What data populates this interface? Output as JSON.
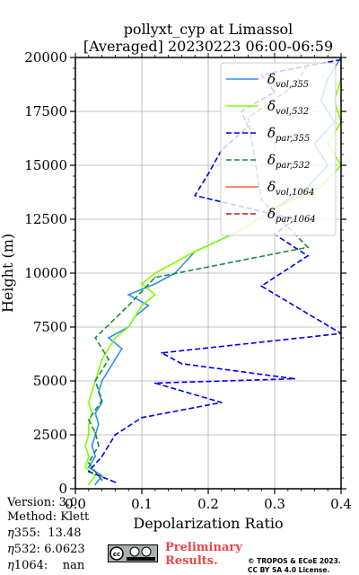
{
  "chart_data": {
    "type": "line",
    "title": [
      "pollyxt_cyp at Limassol",
      "[Averaged] 20230223 06:00-06:59"
    ],
    "xlabel": "Depolarization Ratio",
    "ylabel": "Height (m)",
    "xlim": [
      0.0,
      0.4
    ],
    "ylim": [
      0,
      20000
    ],
    "xticks": [
      0.0,
      0.1,
      0.2,
      0.3,
      0.4
    ],
    "xtick_labels": [
      "0.0",
      "0.1",
      "0.2",
      "0.3",
      "0.4"
    ],
    "yticks": [
      0,
      2500,
      5000,
      7500,
      10000,
      12500,
      15000,
      17500,
      20000
    ],
    "ytick_labels": [
      "0",
      "2500",
      "5000",
      "7500",
      "10000",
      "12500",
      "15000",
      "17500",
      "20000"
    ],
    "grid": true,
    "legend_position": "upper-right",
    "series": [
      {
        "name": "vol,355",
        "label": "δvol,355",
        "base": "δ",
        "sub": "vol,355",
        "color": "#2e8ff0",
        "dash": "solid",
        "width": 1.6,
        "points": [
          [
            0.03,
            200
          ],
          [
            0.04,
            600
          ],
          [
            0.02,
            1000
          ],
          [
            0.03,
            1500
          ],
          [
            0.025,
            2000
          ],
          [
            0.03,
            2500
          ],
          [
            0.035,
            3000
          ],
          [
            0.03,
            3500
          ],
          [
            0.04,
            4000
          ],
          [
            0.035,
            4500
          ],
          [
            0.04,
            5000
          ],
          [
            0.05,
            5500
          ],
          [
            0.06,
            6000
          ],
          [
            0.07,
            6500
          ],
          [
            0.05,
            7000
          ],
          [
            0.08,
            7500
          ],
          [
            0.09,
            8000
          ],
          [
            0.11,
            8500
          ],
          [
            0.08,
            9000
          ],
          [
            0.12,
            9500
          ],
          [
            0.15,
            10000
          ],
          [
            0.18,
            11000
          ],
          [
            0.25,
            12000
          ],
          [
            0.3,
            13000
          ],
          [
            0.35,
            14000
          ],
          [
            0.38,
            15000
          ],
          [
            0.36,
            16000
          ],
          [
            0.39,
            17000
          ],
          [
            0.37,
            18000
          ],
          [
            0.38,
            19000
          ],
          [
            0.4,
            20000
          ]
        ]
      },
      {
        "name": "vol,532",
        "label": "δvol,532",
        "base": "δ",
        "sub": "vol,532",
        "color": "#80ff00",
        "dash": "solid",
        "width": 1.6,
        "points": [
          [
            0.02,
            200
          ],
          [
            0.03,
            600
          ],
          [
            0.015,
            1000
          ],
          [
            0.02,
            1500
          ],
          [
            0.015,
            2000
          ],
          [
            0.02,
            2500
          ],
          [
            0.02,
            3000
          ],
          [
            0.025,
            3500
          ],
          [
            0.02,
            4000
          ],
          [
            0.025,
            4500
          ],
          [
            0.03,
            5000
          ],
          [
            0.035,
            5500
          ],
          [
            0.04,
            6000
          ],
          [
            0.05,
            6500
          ],
          [
            0.06,
            7000
          ],
          [
            0.08,
            7500
          ],
          [
            0.09,
            8000
          ],
          [
            0.1,
            8500
          ],
          [
            0.12,
            9000
          ],
          [
            0.1,
            9500
          ],
          [
            0.12,
            10000
          ],
          [
            0.18,
            11000
          ],
          [
            0.25,
            12000
          ],
          [
            0.3,
            13000
          ],
          [
            0.37,
            14000
          ],
          [
            0.4,
            15000
          ],
          [
            0.38,
            16000
          ],
          [
            0.4,
            17000
          ],
          [
            0.39,
            18000
          ],
          [
            0.4,
            19000
          ],
          [
            0.4,
            20000
          ]
        ]
      },
      {
        "name": "par,355",
        "label": "δpar,355",
        "base": "δ",
        "sub": "par,355",
        "color": "#0000ee",
        "dash": "6,3",
        "width": 1.6,
        "points": [
          [
            0.06,
            300
          ],
          [
            0.02,
            800
          ],
          [
            0.04,
            1500
          ],
          [
            0.05,
            2000
          ],
          [
            0.06,
            2500
          ],
          [
            0.1,
            3300
          ],
          [
            0.22,
            4000
          ],
          [
            0.12,
            4900
          ],
          [
            0.33,
            5100
          ],
          [
            0.16,
            5800
          ],
          [
            0.13,
            6300
          ],
          [
            0.4,
            7200
          ],
          [
            0.28,
            9400
          ],
          [
            0.35,
            10800
          ],
          [
            0.3,
            11800
          ],
          [
            0.33,
            12500
          ],
          [
            0.18,
            13600
          ],
          [
            0.2,
            14600
          ],
          [
            0.22,
            15700
          ],
          [
            0.26,
            16800
          ],
          [
            0.25,
            17500
          ],
          [
            0.3,
            18400
          ],
          [
            0.28,
            19200
          ],
          [
            0.4,
            19900
          ]
        ]
      },
      {
        "name": "par,532",
        "label": "δpar,532",
        "base": "δ",
        "sub": "par,532",
        "color": "#1a8a3a",
        "dash": "6,3",
        "width": 1.6,
        "points": [
          [
            0.04,
            400
          ],
          [
            0.02,
            1200
          ],
          [
            0.035,
            2000
          ],
          [
            0.03,
            2600
          ],
          [
            0.02,
            3200
          ],
          [
            0.04,
            4100
          ],
          [
            0.03,
            5000
          ],
          [
            0.05,
            6000
          ],
          [
            0.03,
            7000
          ],
          [
            0.08,
            8500
          ],
          [
            0.12,
            9800
          ],
          [
            0.35,
            11200
          ],
          [
            0.28,
            13400
          ],
          [
            0.26,
            17200
          ],
          [
            0.33,
            18700
          ],
          [
            0.35,
            19700
          ]
        ]
      },
      {
        "name": "vol,1064",
        "label": "δvol,1064",
        "base": "δ",
        "sub": "vol,1064",
        "color": "#ff5a3c",
        "dash": "solid",
        "width": 1.4,
        "points": []
      },
      {
        "name": "par,1064",
        "label": "δpar,1064",
        "base": "δ",
        "sub": "par,1064",
        "color": "#cc1111",
        "dash": "6,3",
        "width": 1.4,
        "points": []
      }
    ]
  },
  "info": {
    "version": "Version: 3.0",
    "method": "Method: Klett",
    "eta355_label": "355:",
    "eta355_value": "13.48",
    "eta532_label": "532:",
    "eta532_value": "6.0623",
    "eta1064_label": "1064:",
    "eta1064_value": "nan",
    "eta_symbol": "η"
  },
  "footer": {
    "preliminary_line1": "Preliminary",
    "preliminary_line2": "Results.",
    "credit_line1": "© TROPOS & ECoE 2023.",
    "credit_line2": "CC BY SA 4.0 License.",
    "badge_text": "cc"
  }
}
